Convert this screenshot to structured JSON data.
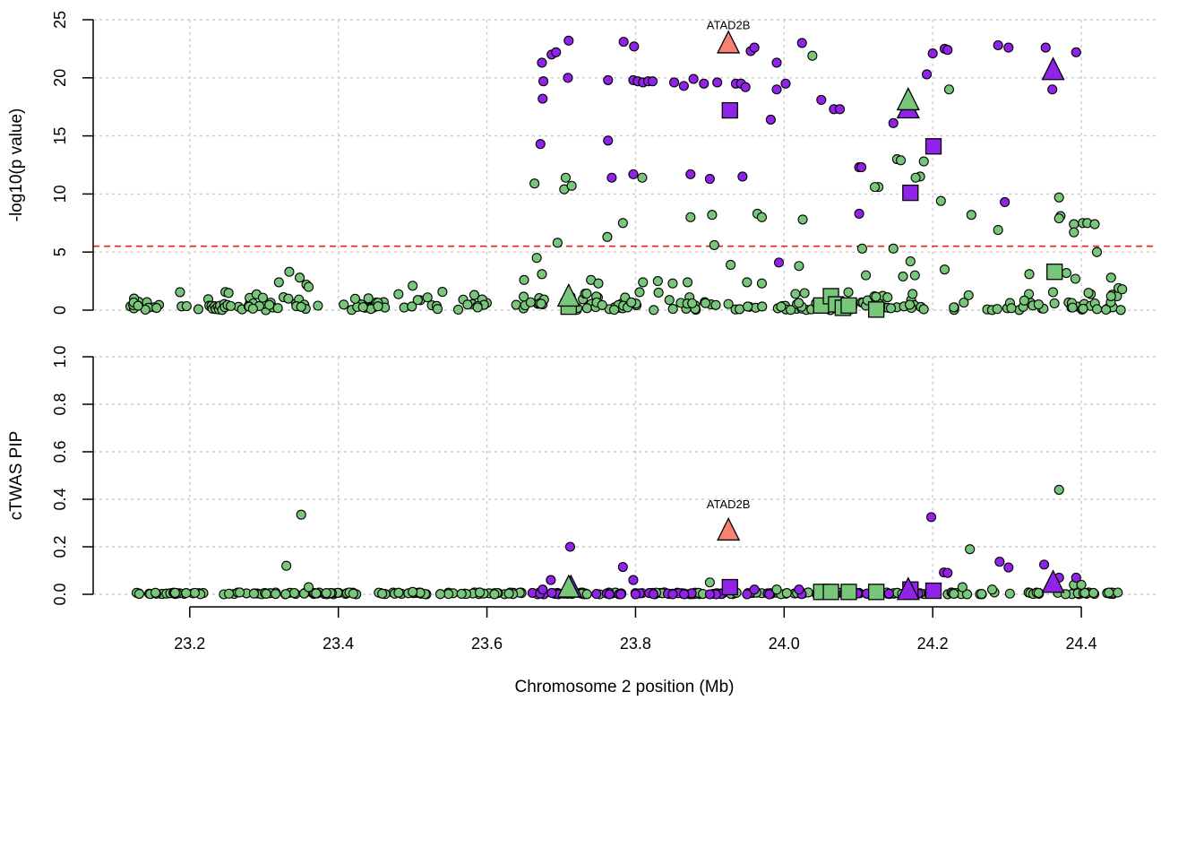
{
  "chart_data": [
    {
      "type": "scatter",
      "panel": "top",
      "ylabel": "-log10(p value)",
      "xlabel": "Chromosome 2 position (Mb)",
      "xlim": [
        23.07,
        24.5
      ],
      "ylim": [
        0,
        25
      ],
      "yticks": [
        "0",
        "5",
        "10",
        "15",
        "20",
        "25"
      ],
      "xticks": [
        "23.2",
        "23.4",
        "23.6",
        "23.8",
        "24.0",
        "24.2",
        "24.4"
      ],
      "threshold": 5.5,
      "grid": true,
      "colors": {
        "snp_bg": "#78c679",
        "snp_hi": "#9122e8",
        "highlight": "#f78274",
        "threshold": "#e8211d",
        "grid": "#cccccc"
      },
      "labels": [
        {
          "text": "ATAD2B",
          "x": 23.925,
          "y": 23.1
        }
      ],
      "series": [
        {
          "marker": "circle",
          "color": "#9122e8",
          "points": [
            [
              23.674,
              21.3
            ],
            [
              23.687,
              22.0
            ],
            [
              23.693,
              22.2
            ],
            [
              23.71,
              23.2
            ],
            [
              23.676,
              19.7
            ],
            [
              23.675,
              18.2
            ],
            [
              23.672,
              14.3
            ],
            [
              23.709,
              20.0
            ],
            [
              23.784,
              23.1
            ],
            [
              23.798,
              22.7
            ],
            [
              23.763,
              19.8
            ],
            [
              23.797,
              19.8
            ],
            [
              23.803,
              19.7
            ],
            [
              23.81,
              19.6
            ],
            [
              23.817,
              19.7
            ],
            [
              23.823,
              19.7
            ],
            [
              23.852,
              19.6
            ],
            [
              23.865,
              19.3
            ],
            [
              23.878,
              19.9
            ],
            [
              23.892,
              19.5
            ],
            [
              23.91,
              19.6
            ],
            [
              23.935,
              19.5
            ],
            [
              23.942,
              19.5
            ],
            [
              23.948,
              19.2
            ],
            [
              23.955,
              22.3
            ],
            [
              23.96,
              22.6
            ],
            [
              23.99,
              21.3
            ],
            [
              23.99,
              19.0
            ],
            [
              24.002,
              19.5
            ],
            [
              24.024,
              23.0
            ],
            [
              24.05,
              18.1
            ],
            [
              24.067,
              17.3
            ],
            [
              24.075,
              17.3
            ],
            [
              23.982,
              16.4
            ],
            [
              23.763,
              14.6
            ],
            [
              23.768,
              11.4
            ],
            [
              23.797,
              11.7
            ],
            [
              23.874,
              11.7
            ],
            [
              23.9,
              11.3
            ],
            [
              23.944,
              11.5
            ],
            [
              24.101,
              12.3
            ],
            [
              24.147,
              16.1
            ],
            [
              24.192,
              20.3
            ],
            [
              24.2,
              22.1
            ],
            [
              24.216,
              22.5
            ],
            [
              24.22,
              22.4
            ],
            [
              24.288,
              22.8
            ],
            [
              24.302,
              22.6
            ],
            [
              24.352,
              22.6
            ],
            [
              24.393,
              22.2
            ],
            [
              24.361,
              19.0
            ],
            [
              24.101,
              8.3
            ],
            [
              24.104,
              12.3
            ],
            [
              24.297,
              9.3
            ],
            [
              23.993,
              4.1
            ]
          ]
        },
        {
          "marker": "circle",
          "color": "#78c679",
          "points": [
            [
              23.664,
              10.9
            ],
            [
              23.706,
              11.4
            ],
            [
              23.704,
              10.4
            ],
            [
              23.714,
              10.7
            ],
            [
              23.809,
              11.4
            ],
            [
              23.783,
              7.5
            ],
            [
              23.762,
              6.3
            ],
            [
              23.695,
              5.8
            ],
            [
              23.667,
              4.5
            ],
            [
              23.674,
              3.1
            ],
            [
              23.874,
              8.0
            ],
            [
              23.903,
              8.2
            ],
            [
              23.906,
              5.6
            ],
            [
              23.928,
              3.9
            ],
            [
              23.964,
              8.3
            ],
            [
              23.97,
              8.0
            ],
            [
              24.025,
              7.8
            ],
            [
              24.038,
              21.9
            ],
            [
              24.127,
              10.6
            ],
            [
              24.122,
              10.6
            ],
            [
              24.152,
              13.0
            ],
            [
              24.157,
              12.9
            ],
            [
              24.188,
              12.8
            ],
            [
              24.183,
              11.5
            ],
            [
              24.177,
              11.4
            ],
            [
              24.222,
              19.0
            ],
            [
              24.211,
              9.4
            ],
            [
              24.252,
              8.2
            ],
            [
              24.288,
              6.9
            ],
            [
              24.37,
              9.7
            ],
            [
              24.372,
              8.1
            ],
            [
              24.37,
              7.9
            ],
            [
              24.39,
              7.4
            ],
            [
              24.39,
              6.7
            ],
            [
              24.402,
              7.5
            ],
            [
              24.408,
              7.5
            ],
            [
              24.418,
              7.4
            ],
            [
              24.421,
              5.0
            ],
            [
              24.105,
              5.3
            ],
            [
              24.147,
              5.3
            ],
            [
              24.02,
              3.8
            ],
            [
              24.11,
              3.0
            ],
            [
              24.16,
              2.9
            ],
            [
              24.17,
              4.2
            ],
            [
              24.176,
              3.0
            ],
            [
              24.216,
              3.5
            ],
            [
              24.33,
              3.1
            ],
            [
              24.38,
              3.2
            ],
            [
              24.392,
              2.7
            ],
            [
              24.44,
              2.8
            ],
            [
              23.334,
              3.3
            ],
            [
              23.32,
              2.4
            ],
            [
              23.348,
              2.8
            ],
            [
              23.357,
              2.2
            ],
            [
              23.36,
              2.0
            ],
            [
              23.5,
              2.1
            ],
            [
              23.52,
              1.1
            ],
            [
              23.65,
              2.6
            ],
            [
              23.74,
              2.6
            ],
            [
              23.75,
              2.3
            ],
            [
              23.81,
              2.4
            ],
            [
              23.83,
              2.5
            ],
            [
              23.85,
              2.3
            ],
            [
              23.87,
              2.4
            ],
            [
              23.95,
              2.4
            ],
            [
              23.97,
              2.3
            ],
            [
              24.44,
              1.2
            ],
            [
              24.45,
              1.9
            ],
            [
              24.455,
              1.8
            ]
          ]
        },
        {
          "marker": "square",
          "color": "#9122e8",
          "points": [
            [
              23.927,
              17.2
            ],
            [
              24.201,
              14.1
            ],
            [
              24.17,
              10.1
            ]
          ]
        },
        {
          "marker": "square",
          "color": "#78c679",
          "points": [
            [
              23.71,
              0.3
            ],
            [
              24.05,
              0.4
            ],
            [
              24.063,
              1.2
            ],
            [
              24.07,
              0.5
            ],
            [
              24.079,
              0.2
            ],
            [
              24.087,
              0.4
            ],
            [
              24.124,
              0.05
            ],
            [
              24.364,
              3.3
            ]
          ]
        },
        {
          "marker": "triangle",
          "color": "#9122e8",
          "points": [
            [
              24.167,
              17.4
            ],
            [
              24.362,
              20.7
            ]
          ]
        },
        {
          "marker": "triangle",
          "color": "#78c679",
          "points": [
            [
              23.71,
              1.2
            ],
            [
              24.167,
              18.1
            ]
          ]
        },
        {
          "marker": "triangle",
          "color": "#f78274",
          "points": [
            [
              23.925,
              23.0
            ]
          ]
        }
      ]
    },
    {
      "type": "scatter",
      "panel": "bottom",
      "ylabel": "cTWAS PIP",
      "xlabel": "Chromosome 2 position (Mb)",
      "xlim": [
        23.07,
        24.5
      ],
      "ylim": [
        0,
        1
      ],
      "yticks": [
        "0.0",
        "0.2",
        "0.4",
        "0.6",
        "0.8",
        "1.0"
      ],
      "xticks": [
        "23.2",
        "23.4",
        "23.6",
        "23.8",
        "24.0",
        "24.2",
        "24.4"
      ],
      "grid": true,
      "labels": [
        {
          "text": "ATAD2B",
          "x": 23.925,
          "y": 0.31
        }
      ],
      "series": [
        {
          "marker": "circle",
          "color": "#78c679",
          "points": [
            [
              23.35,
              0.335
            ],
            [
              23.33,
              0.12
            ],
            [
              23.36,
              0.03
            ],
            [
              24.37,
              0.44
            ],
            [
              24.25,
              0.19
            ],
            [
              24.24,
              0.03
            ],
            [
              23.9,
              0.05
            ],
            [
              24.39,
              0.04
            ],
            [
              24.4,
              0.04
            ],
            [
              24.28,
              0.02
            ],
            [
              23.99,
              0.02
            ],
            [
              23.5,
              0.01
            ]
          ]
        },
        {
          "marker": "circle",
          "color": "#9122e8",
          "points": [
            [
              23.712,
              0.2
            ],
            [
              23.783,
              0.115
            ],
            [
              23.797,
              0.06
            ],
            [
              23.686,
              0.06
            ],
            [
              24.198,
              0.325
            ],
            [
              24.215,
              0.092
            ],
            [
              24.22,
              0.09
            ],
            [
              24.29,
              0.137
            ],
            [
              24.302,
              0.113
            ],
            [
              24.35,
              0.125
            ],
            [
              24.393,
              0.07
            ],
            [
              24.37,
              0.07
            ],
            [
              23.93,
              0.02
            ],
            [
              23.96,
              0.02
            ],
            [
              24.02,
              0.02
            ],
            [
              23.675,
              0.02
            ],
            [
              23.8,
              0.0
            ],
            [
              23.85,
              0.0
            ],
            [
              23.9,
              0.0
            ],
            [
              23.95,
              0.0
            ],
            [
              23.98,
              0.0
            ]
          ]
        },
        {
          "marker": "square",
          "color": "#9122e8",
          "points": [
            [
              23.927,
              0.03
            ],
            [
              24.201,
              0.015
            ],
            [
              24.17,
              0.02
            ]
          ]
        },
        {
          "marker": "square",
          "color": "#78c679",
          "points": [
            [
              24.05,
              0.01
            ],
            [
              24.063,
              0.01
            ],
            [
              24.087,
              0.01
            ],
            [
              24.124,
              0.01
            ]
          ]
        },
        {
          "marker": "triangle",
          "color": "#9122e8",
          "points": [
            [
              24.167,
              0.02
            ],
            [
              24.362,
              0.05
            ],
            [
              23.713,
              0.03
            ]
          ]
        },
        {
          "marker": "triangle",
          "color": "#78c679",
          "points": [
            [
              23.71,
              0.03
            ]
          ]
        },
        {
          "marker": "triangle",
          "color": "#f78274",
          "points": [
            [
              23.925,
              0.27
            ]
          ]
        }
      ]
    }
  ]
}
